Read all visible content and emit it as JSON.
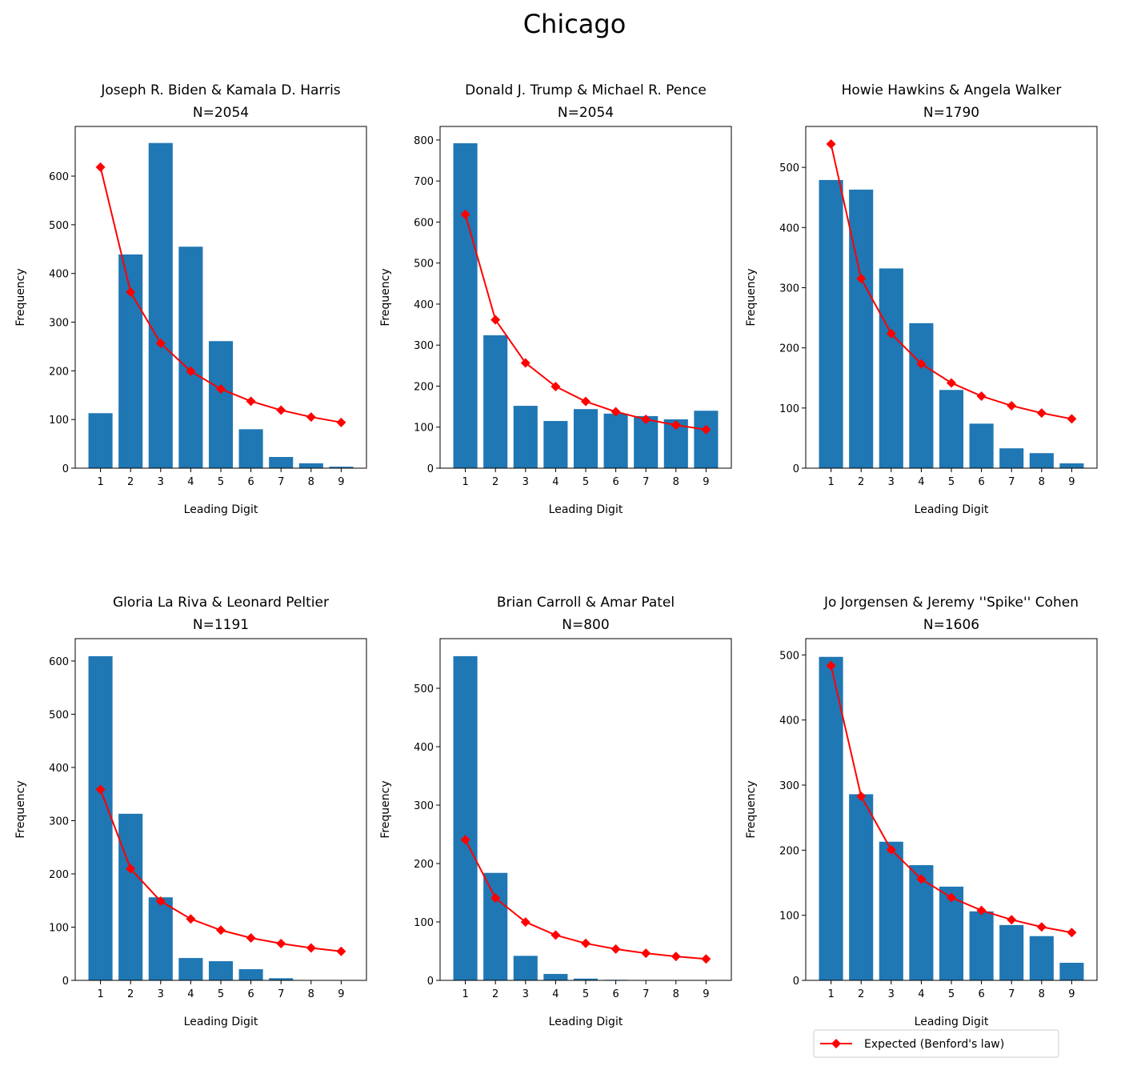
{
  "chart_data": {
    "title": "Chicago",
    "type": "bar+line",
    "legend": {
      "label": "Expected (Benford's law)",
      "placement": "bottom-right",
      "color": "#ff0000",
      "marker": "diamond"
    },
    "bar_color": "#1f77b4",
    "line_color": "#ff0000",
    "panels": [
      {
        "title": "Joseph R. Biden & Kamala D. Harris",
        "subtitle": "N=2054",
        "xlabel": "Leading Digit",
        "ylabel": "Frequency",
        "categories": [
          1,
          2,
          3,
          4,
          5,
          6,
          7,
          8,
          9
        ],
        "ylim": [
          0,
          702
        ],
        "yticks": [
          0,
          100,
          200,
          300,
          400,
          500,
          600
        ],
        "observed": [
          113,
          439,
          668,
          455,
          261,
          80,
          23,
          10,
          3
        ],
        "expected": [
          618.3,
          361.7,
          256.6,
          199.1,
          162.6,
          137.5,
          119.1,
          105.1,
          94.0
        ]
      },
      {
        "title": "Donald J. Trump & Michael R. Pence",
        "subtitle": "N=2054",
        "xlabel": "Leading Digit",
        "ylabel": "Frequency",
        "categories": [
          1,
          2,
          3,
          4,
          5,
          6,
          7,
          8,
          9
        ],
        "ylim": [
          0,
          833
        ],
        "yticks": [
          0,
          100,
          200,
          300,
          400,
          500,
          600,
          700,
          800
        ],
        "observed": [
          792,
          324,
          152,
          115,
          144,
          133,
          127,
          119,
          140
        ],
        "expected": [
          618.3,
          361.7,
          256.6,
          199.1,
          162.6,
          137.5,
          119.1,
          105.1,
          94.0
        ]
      },
      {
        "title": "Howie Hawkins & Angela Walker",
        "subtitle": "N=1790",
        "xlabel": "Leading Digit",
        "ylabel": "Frequency",
        "categories": [
          1,
          2,
          3,
          4,
          5,
          6,
          7,
          8,
          9
        ],
        "ylim": [
          0,
          568
        ],
        "yticks": [
          0,
          100,
          200,
          300,
          400,
          500
        ],
        "observed": [
          479,
          463,
          332,
          241,
          130,
          74,
          33,
          25,
          8
        ],
        "expected": [
          538.8,
          315.2,
          223.6,
          173.5,
          141.7,
          119.8,
          103.8,
          91.6,
          81.9
        ]
      },
      {
        "title": "Gloria La Riva & Leonard Peltier",
        "subtitle": "N=1191",
        "xlabel": "Leading Digit",
        "ylabel": "Frequency",
        "categories": [
          1,
          2,
          3,
          4,
          5,
          6,
          7,
          8,
          9
        ],
        "ylim": [
          0,
          642
        ],
        "yticks": [
          0,
          100,
          200,
          300,
          400,
          500,
          600
        ],
        "observed": [
          609,
          313,
          156,
          42,
          36,
          21,
          4,
          0,
          0
        ],
        "expected": [
          358.5,
          209.7,
          148.8,
          115.4,
          94.3,
          79.7,
          69.1,
          60.9,
          54.5
        ]
      },
      {
        "title": "Brian Carroll & Amar Patel",
        "subtitle": "N=800",
        "xlabel": "Leading Digit",
        "ylabel": "Frequency",
        "categories": [
          1,
          2,
          3,
          4,
          5,
          6,
          7,
          8,
          9
        ],
        "ylim": [
          0,
          585
        ],
        "yticks": [
          0,
          100,
          200,
          300,
          400,
          500
        ],
        "observed": [
          555,
          184,
          42,
          11,
          3,
          1,
          0,
          0,
          0
        ],
        "expected": [
          240.8,
          140.9,
          99.9,
          77.5,
          63.3,
          53.6,
          46.4,
          40.9,
          36.6
        ]
      },
      {
        "title": "Jo Jorgensen & Jeremy ''Spike'' Cohen",
        "subtitle": "N=1606",
        "xlabel": "Leading Digit",
        "ylabel": "Frequency",
        "categories": [
          1,
          2,
          3,
          4,
          5,
          6,
          7,
          8,
          9
        ],
        "ylim": [
          0,
          525
        ],
        "yticks": [
          0,
          100,
          200,
          300,
          400,
          500
        ],
        "observed": [
          497,
          286,
          213,
          177,
          144,
          106,
          85,
          68,
          27
        ],
        "expected": [
          483.5,
          282.8,
          200.7,
          155.6,
          127.2,
          107.5,
          93.1,
          82.1,
          73.5
        ]
      }
    ]
  }
}
